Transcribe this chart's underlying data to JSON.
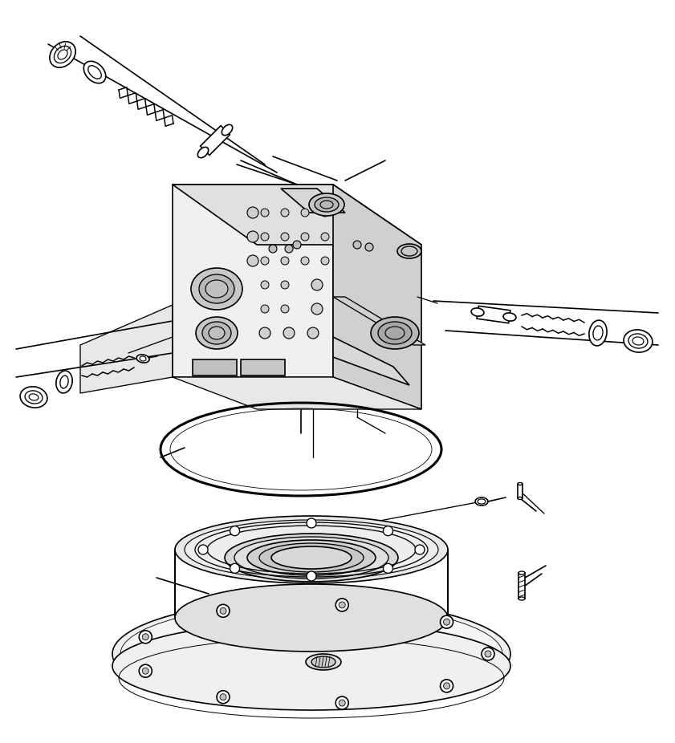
{
  "bg_color": "#ffffff",
  "line_color": "#000000",
  "line_width": 1.2,
  "fig_width": 8.41,
  "fig_height": 9.26
}
